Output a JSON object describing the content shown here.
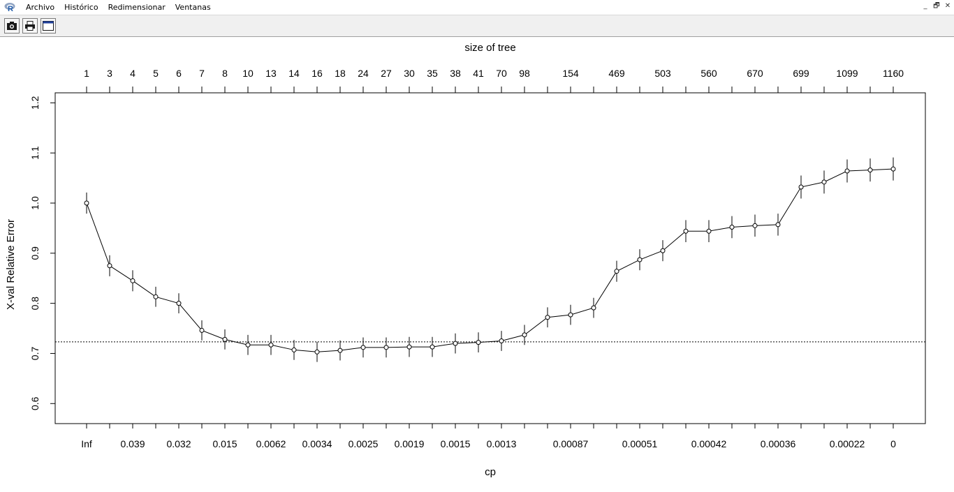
{
  "menubar": {
    "items": [
      "Archivo",
      "Histórico",
      "Redimensionar",
      "Ventanas"
    ]
  },
  "window_controls": {
    "minimize": "_",
    "restore": "🗗",
    "close": "✕"
  },
  "toolbar": {
    "buttons": [
      {
        "icon": "camera-icon"
      },
      {
        "icon": "printer-icon"
      },
      {
        "icon": "window-icon"
      }
    ]
  },
  "chart_data": {
    "type": "line",
    "top_title": "size of tree",
    "xlabel": "cp",
    "ylabel": "X-val Relative Error",
    "ylim": [
      0.56,
      1.22
    ],
    "yticks": [
      0.6,
      0.7,
      0.8,
      0.9,
      1.0,
      1.1,
      1.2
    ],
    "ytick_labels": [
      "0.6",
      "0.7",
      "0.8",
      "0.9",
      "1.0",
      "1.1",
      "1.2"
    ],
    "x": [
      1,
      2,
      3,
      4,
      5,
      6,
      7,
      8,
      9,
      10,
      11,
      12,
      13,
      14,
      15,
      16,
      17,
      18,
      19,
      20,
      21,
      22,
      23,
      24,
      25,
      26,
      27,
      28,
      29,
      30,
      31,
      32,
      33,
      34,
      35,
      36
    ],
    "size_of_tree_labels": [
      "1",
      "3",
      "4",
      "5",
      "6",
      "7",
      "8",
      "10",
      "13",
      "14",
      "16",
      "18",
      "24",
      "27",
      "30",
      "35",
      "38",
      "41",
      "70",
      "98",
      "154",
      "469",
      "503",
      "560",
      "670",
      "699",
      "1099",
      "1160"
    ],
    "size_of_tree_positions": [
      1,
      2,
      3,
      4,
      5,
      6,
      7,
      8,
      9,
      10,
      11,
      12,
      13,
      14,
      15,
      16,
      17,
      18,
      19,
      20,
      22,
      24,
      26,
      28,
      30,
      32,
      34,
      36
    ],
    "cp_labels": [
      "Inf",
      "0.039",
      "0.032",
      "0.015",
      "0.0062",
      "0.0034",
      "0.0025",
      "0.0019",
      "0.0015",
      "0.0013",
      "0.00087",
      "0.00051",
      "0.00042",
      "0.00036",
      "0.00022",
      "0"
    ],
    "cp_positions": [
      1,
      3,
      5,
      7,
      9,
      11,
      13,
      15,
      17,
      19,
      22,
      25,
      28,
      31,
      34,
      36
    ],
    "values": [
      1.0,
      0.875,
      0.845,
      0.813,
      0.8,
      0.746,
      0.728,
      0.717,
      0.717,
      0.707,
      0.703,
      0.706,
      0.712,
      0.712,
      0.713,
      0.713,
      0.72,
      0.722,
      0.725,
      0.737,
      0.772,
      0.777,
      0.791,
      0.864,
      0.887,
      0.905,
      0.944,
      0.944,
      0.952,
      0.955,
      0.957,
      1.032,
      1.042,
      1.064,
      1.066,
      1.068
    ],
    "errors": [
      0.021,
      0.021,
      0.021,
      0.02,
      0.02,
      0.02,
      0.02,
      0.02,
      0.02,
      0.02,
      0.02,
      0.02,
      0.02,
      0.02,
      0.02,
      0.02,
      0.02,
      0.02,
      0.02,
      0.02,
      0.02,
      0.02,
      0.02,
      0.021,
      0.021,
      0.021,
      0.022,
      0.022,
      0.022,
      0.022,
      0.022,
      0.023,
      0.023,
      0.023,
      0.023,
      0.023
    ],
    "hline": 0.723,
    "grid": false,
    "legend": "none"
  }
}
